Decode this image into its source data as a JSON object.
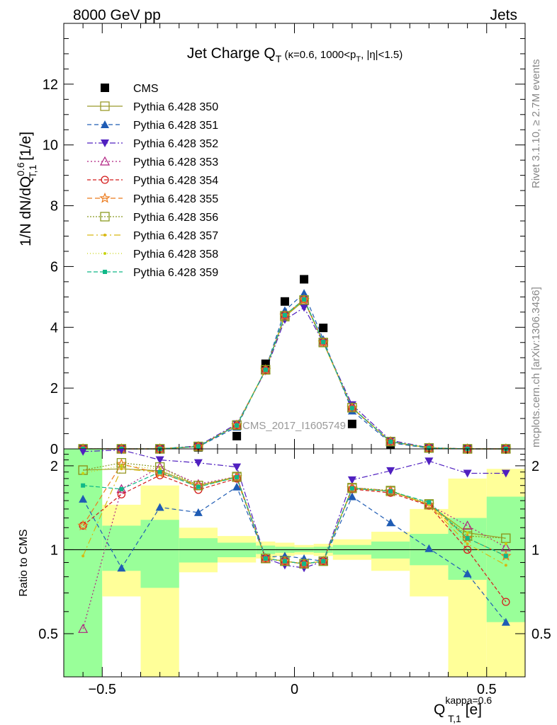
{
  "header": {
    "left": "8000 GeV pp",
    "right": "Jets"
  },
  "side_labels": {
    "rivet": "Rivet 3.1.10, ≥ 2.7M events",
    "mcplots": "mcplots.cern.ch [arXiv:1306.3436]"
  },
  "watermark": "CMS_2017_I1605749",
  "chart_data": [
    {
      "type": "line",
      "title": "Jet Charge Q_T (κ=0.6, 1000<p_T, |η|<1.5)",
      "ylabel": "1/N dN/dQ^{0.6}_{T,1} [1/e]",
      "xlim": [
        -0.6,
        0.6
      ],
      "ylim": [
        0,
        14
      ],
      "yticks": [
        0,
        2,
        4,
        6,
        8,
        10,
        12
      ],
      "x": [
        -0.55,
        -0.45,
        -0.35,
        -0.25,
        -0.15,
        -0.075,
        -0.025,
        0.025,
        0.075,
        0.15,
        0.25,
        0.35,
        0.45,
        0.55
      ],
      "series": [
        {
          "name": "CMS",
          "color": "#000000",
          "values": [
            0.0,
            0.0,
            0.0,
            0.05,
            0.42,
            2.8,
            4.85,
            5.58,
            3.98,
            0.82,
            0.15,
            0.02,
            0.0,
            0.0
          ]
        },
        {
          "name": "Pythia 6.428 350",
          "color": "#9a9a2a",
          "values": [
            0.0,
            0.0,
            0.0,
            0.08,
            0.78,
            2.6,
            4.35,
            4.88,
            3.5,
            1.35,
            0.24,
            0.03,
            0.0,
            0.0
          ]
        },
        {
          "name": "Pythia 6.428 351",
          "color": "#1f5cb4",
          "values": [
            0.0,
            0.0,
            0.0,
            0.07,
            0.72,
            2.62,
            4.55,
            5.12,
            3.6,
            1.25,
            0.2,
            0.02,
            0.0,
            0.0
          ]
        },
        {
          "name": "Pythia 6.428 352",
          "color": "#5020c0",
          "values": [
            0.0,
            0.0,
            0.0,
            0.1,
            0.82,
            2.56,
            4.25,
            4.65,
            3.5,
            1.45,
            0.28,
            0.04,
            0.0,
            0.0
          ]
        },
        {
          "name": "Pythia 6.428 353",
          "color": "#b02080",
          "values": [
            0.0,
            0.0,
            0.0,
            0.08,
            0.78,
            2.6,
            4.4,
            4.92,
            3.52,
            1.35,
            0.24,
            0.03,
            0.0,
            0.0
          ]
        },
        {
          "name": "Pythia 6.428 354",
          "color": "#d41c1c",
          "values": [
            0.0,
            0.0,
            0.0,
            0.08,
            0.77,
            2.6,
            4.4,
            4.92,
            3.52,
            1.34,
            0.23,
            0.03,
            0.0,
            0.0
          ]
        },
        {
          "name": "Pythia 6.428 355",
          "color": "#ec7a1c",
          "values": [
            0.0,
            0.0,
            0.0,
            0.08,
            0.78,
            2.6,
            4.38,
            4.9,
            3.5,
            1.35,
            0.24,
            0.03,
            0.0,
            0.0
          ]
        },
        {
          "name": "Pythia 6.428 356",
          "color": "#8a9a20",
          "values": [
            0.0,
            0.0,
            0.0,
            0.08,
            0.78,
            2.6,
            4.38,
            4.9,
            3.5,
            1.36,
            0.24,
            0.03,
            0.0,
            0.0
          ]
        },
        {
          "name": "Pythia 6.428 357",
          "color": "#d8b810",
          "values": [
            0.0,
            0.0,
            0.0,
            0.08,
            0.78,
            2.6,
            4.38,
            4.9,
            3.5,
            1.35,
            0.24,
            0.03,
            0.0,
            0.0
          ]
        },
        {
          "name": "Pythia 6.428 358",
          "color": "#c8d410",
          "values": [
            0.0,
            0.0,
            0.0,
            0.08,
            0.78,
            2.6,
            4.38,
            4.9,
            3.5,
            1.35,
            0.24,
            0.03,
            0.0,
            0.0
          ]
        },
        {
          "name": "Pythia 6.428 359",
          "color": "#10b888",
          "values": [
            0.0,
            0.0,
            0.0,
            0.08,
            0.77,
            2.6,
            4.4,
            4.92,
            3.52,
            1.34,
            0.24,
            0.03,
            0.0,
            0.0
          ]
        }
      ],
      "legend_placement": "top-left"
    },
    {
      "type": "line",
      "ylabel": "Ratio to CMS",
      "xlabel": "Q^{kappa=0.6}_{T,1} [e]",
      "xlim": [
        -0.6,
        0.6
      ],
      "ylim": [
        0.35,
        2.3
      ],
      "yticks": [
        0.5,
        1,
        2
      ],
      "xticks": [
        -0.5,
        0,
        0.5
      ],
      "band_edges": [
        -0.6,
        -0.5,
        -0.4,
        -0.3,
        -0.2,
        -0.1,
        -0.05,
        0.0,
        0.05,
        0.1,
        0.2,
        0.3,
        0.4,
        0.5,
        0.6
      ],
      "band_green": [
        [
          0.3,
          2.3
        ],
        [
          0.84,
          1.22
        ],
        [
          0.73,
          1.28
        ],
        [
          0.9,
          1.1
        ],
        [
          0.94,
          1.06
        ],
        [
          0.965,
          1.035
        ],
        [
          0.975,
          1.025
        ],
        [
          0.98,
          1.02
        ],
        [
          0.975,
          1.025
        ],
        [
          0.96,
          1.04
        ],
        [
          0.93,
          1.07
        ],
        [
          0.88,
          1.14
        ],
        [
          0.78,
          1.3
        ],
        [
          0.55,
          1.55
        ]
      ],
      "band_yellow": [
        [
          0.3,
          2.3
        ],
        [
          0.68,
          1.45
        ],
        [
          0.3,
          1.7
        ],
        [
          0.83,
          1.2
        ],
        [
          0.9,
          1.12
        ],
        [
          0.93,
          1.07
        ],
        [
          0.95,
          1.06
        ],
        [
          0.96,
          1.04
        ],
        [
          0.95,
          1.05
        ],
        [
          0.92,
          1.09
        ],
        [
          0.84,
          1.16
        ],
        [
          0.68,
          1.4
        ],
        [
          0.3,
          1.8
        ],
        [
          0.3,
          1.95
        ]
      ],
      "x": [
        -0.55,
        -0.45,
        -0.35,
        -0.25,
        -0.15,
        -0.075,
        -0.025,
        0.025,
        0.075,
        0.15,
        0.25,
        0.35,
        0.45,
        0.55
      ],
      "series": [
        {
          "name": "Pythia 6.428 350",
          "color": "#9a9a2a",
          "values": [
            1.93,
            1.95,
            1.92,
            1.7,
            1.82,
            0.93,
            0.91,
            0.89,
            0.91,
            1.66,
            1.62,
            1.45,
            1.15,
            1.1
          ]
        },
        {
          "name": "Pythia 6.428 351",
          "color": "#1f5cb4",
          "values": [
            1.52,
            0.86,
            1.42,
            1.36,
            1.68,
            0.94,
            0.95,
            0.93,
            0.91,
            1.55,
            1.25,
            1.01,
            0.82,
            0.55
          ]
        },
        {
          "name": "Pythia 6.428 352",
          "color": "#5020c0",
          "values": [
            2.25,
            2.28,
            2.1,
            2.05,
            1.98,
            0.93,
            0.88,
            0.86,
            0.91,
            1.78,
            1.92,
            2.08,
            1.88,
            1.88
          ]
        },
        {
          "name": "Pythia 6.428 353",
          "color": "#b02080",
          "values": [
            0.52,
            1.65,
            1.98,
            1.72,
            1.83,
            0.93,
            0.91,
            0.89,
            0.91,
            1.67,
            1.63,
            1.45,
            1.22,
            1.02
          ]
        },
        {
          "name": "Pythia 6.428 354",
          "color": "#d41c1c",
          "values": [
            1.22,
            1.58,
            1.85,
            1.64,
            1.8,
            0.93,
            0.91,
            0.89,
            0.91,
            1.65,
            1.6,
            1.44,
            1.0,
            0.65
          ]
        },
        {
          "name": "Pythia 6.428 355",
          "color": "#ec7a1c",
          "values": [
            1.22,
            2.03,
            1.88,
            1.7,
            1.82,
            0.93,
            0.91,
            0.89,
            0.91,
            1.66,
            1.62,
            1.45,
            1.1,
            0.95
          ]
        },
        {
          "name": "Pythia 6.428 356",
          "color": "#8a9a20",
          "values": [
            1.93,
            2.05,
            1.98,
            1.7,
            1.83,
            0.93,
            0.91,
            0.89,
            0.91,
            1.67,
            1.63,
            1.46,
            1.12,
            1.1
          ]
        },
        {
          "name": "Pythia 6.428 357",
          "color": "#d8b810",
          "values": [
            0.95,
            1.95,
            1.9,
            1.68,
            1.82,
            0.93,
            0.91,
            0.89,
            0.91,
            1.66,
            1.62,
            1.45,
            1.05,
            0.88
          ]
        },
        {
          "name": "Pythia 6.428 358",
          "color": "#c8d410",
          "values": [
            1.88,
            2.0,
            1.95,
            1.7,
            1.83,
            0.93,
            0.91,
            0.89,
            0.91,
            1.67,
            1.63,
            1.46,
            1.15,
            1.05
          ]
        },
        {
          "name": "Pythia 6.428 359",
          "color": "#10b888",
          "values": [
            1.7,
            1.65,
            1.9,
            1.68,
            1.82,
            0.93,
            0.91,
            0.89,
            0.91,
            1.66,
            1.62,
            1.48,
            1.1,
            0.95
          ]
        }
      ]
    }
  ]
}
